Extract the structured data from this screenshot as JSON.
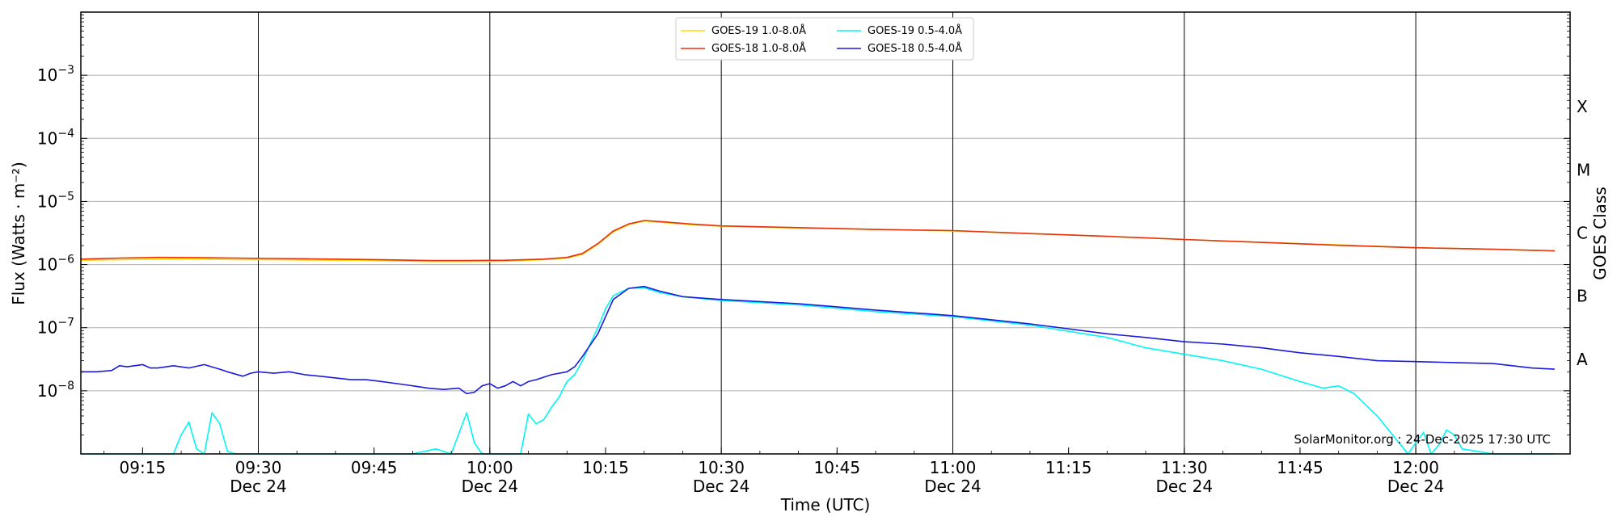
{
  "chart_data": {
    "type": "line",
    "xlabel": "Time (UTC)",
    "ylabel": "Flux (Watts · m⁻²)",
    "ylabel_right": "GOES Class",
    "yscale": "log",
    "xlim": [
      "09:07",
      "12:20"
    ],
    "ylim": [
      1e-09,
      0.01
    ],
    "grid": {
      "horizontal": true,
      "vertical_at_half_hours": true
    },
    "legend_position": "top-center",
    "watermark": "SolarMonitor.org : 24-Dec-2025 17:30 UTC",
    "x_ticks": [
      {
        "time": "09:15",
        "label": "09:15",
        "sub": ""
      },
      {
        "time": "09:30",
        "label": "09:30",
        "sub": "Dec 24"
      },
      {
        "time": "09:45",
        "label": "09:45",
        "sub": ""
      },
      {
        "time": "10:00",
        "label": "10:00",
        "sub": "Dec 24"
      },
      {
        "time": "10:15",
        "label": "10:15",
        "sub": ""
      },
      {
        "time": "10:30",
        "label": "10:30",
        "sub": "Dec 24"
      },
      {
        "time": "10:45",
        "label": "10:45",
        "sub": ""
      },
      {
        "time": "11:00",
        "label": "11:00",
        "sub": "Dec 24"
      },
      {
        "time": "11:15",
        "label": "11:15",
        "sub": ""
      },
      {
        "time": "11:30",
        "label": "11:30",
        "sub": "Dec 24"
      },
      {
        "time": "11:45",
        "label": "11:45",
        "sub": ""
      },
      {
        "time": "12:00",
        "label": "12:00",
        "sub": "Dec 24"
      }
    ],
    "y_ticks": [
      {
        "value": 1e-08,
        "base": "10",
        "exp": "−8"
      },
      {
        "value": 1e-07,
        "base": "10",
        "exp": "−7"
      },
      {
        "value": 1e-06,
        "base": "10",
        "exp": "−6"
      },
      {
        "value": 1e-05,
        "base": "10",
        "exp": "−5"
      },
      {
        "value": 0.0001,
        "base": "10",
        "exp": "−4"
      },
      {
        "value": 0.001,
        "base": "10",
        "exp": "−3"
      }
    ],
    "goes_classes": [
      {
        "label": "A",
        "value": 1e-08
      },
      {
        "label": "B",
        "value": 1e-07
      },
      {
        "label": "C",
        "value": 1e-06
      },
      {
        "label": "M",
        "value": 1e-05
      },
      {
        "label": "X",
        "value": 0.0001
      }
    ],
    "series": [
      {
        "name": "GOES-19 1.0-8.0Å",
        "color": "#ffd700",
        "x": [
          "09:07",
          "09:12",
          "09:17",
          "09:22",
          "09:27",
          "09:32",
          "09:37",
          "09:42",
          "09:47",
          "09:52",
          "09:57",
          "10:02",
          "10:07",
          "10:10",
          "10:12",
          "10:14",
          "10:16",
          "10:18",
          "10:20",
          "10:22",
          "10:26",
          "10:30",
          "10:40",
          "10:50",
          "11:00",
          "11:10",
          "11:20",
          "11:30",
          "11:40",
          "11:50",
          "12:00",
          "12:10",
          "12:18"
        ],
        "values": [
          1.17e-06,
          1.2e-06,
          1.22e-06,
          1.22e-06,
          1.2e-06,
          1.2e-06,
          1.18e-06,
          1.17e-06,
          1.15e-06,
          1.12e-06,
          1.12e-06,
          1.13e-06,
          1.2e-06,
          1.27e-06,
          1.45e-06,
          2.1e-06,
          3.3e-06,
          4.3e-06,
          4.9e-06,
          4.7e-06,
          4.3e-06,
          4.05e-06,
          3.8e-06,
          3.6e-06,
          3.4e-06,
          3.1e-06,
          2.8e-06,
          2.5e-06,
          2.25e-06,
          2.05e-06,
          1.85e-06,
          1.75e-06,
          1.65e-06
        ]
      },
      {
        "name": "GOES-18 1.0-8.0Å",
        "color": "#e8310f",
        "x": [
          "09:07",
          "09:12",
          "09:17",
          "09:22",
          "09:27",
          "09:32",
          "09:37",
          "09:42",
          "09:47",
          "09:52",
          "09:57",
          "10:02",
          "10:07",
          "10:10",
          "10:12",
          "10:14",
          "10:16",
          "10:18",
          "10:20",
          "10:22",
          "10:26",
          "10:30",
          "10:40",
          "10:50",
          "11:00",
          "11:10",
          "11:20",
          "11:30",
          "11:40",
          "11:50",
          "12:00",
          "12:10",
          "12:18"
        ],
        "values": [
          1.22e-06,
          1.27e-06,
          1.3e-06,
          1.29e-06,
          1.27e-06,
          1.25e-06,
          1.23e-06,
          1.21e-06,
          1.19e-06,
          1.16e-06,
          1.16e-06,
          1.17e-06,
          1.22e-06,
          1.3e-06,
          1.5e-06,
          2.15e-06,
          3.4e-06,
          4.4e-06,
          5e-06,
          4.8e-06,
          4.4e-06,
          4.1e-06,
          3.85e-06,
          3.6e-06,
          3.45e-06,
          3.1e-06,
          2.8e-06,
          2.5e-06,
          2.25e-06,
          2.02e-06,
          1.85e-06,
          1.75e-06,
          1.65e-06
        ]
      },
      {
        "name": "GOES-19 0.5-4.0Å",
        "color": "#00f5f5",
        "x": [
          "09:07",
          "09:13",
          "09:19",
          "09:20",
          "09:21",
          "09:22",
          "09:23",
          "09:24",
          "09:25",
          "09:26",
          "09:27",
          "09:28",
          "09:33",
          "09:40",
          "09:50",
          "09:53",
          "09:55",
          "09:57",
          "09:58",
          "09:59",
          "10:00",
          "10:04",
          "10:05",
          "10:06",
          "10:07",
          "10:08",
          "10:09",
          "10:10",
          "10:11",
          "10:12",
          "10:13",
          "10:14",
          "10:15",
          "10:16",
          "10:18",
          "10:20",
          "10:22",
          "10:25",
          "10:30",
          "10:40",
          "10:50",
          "11:00",
          "11:10",
          "11:20",
          "11:25",
          "11:30",
          "11:35",
          "11:40",
          "11:45",
          "11:48",
          "11:50",
          "11:52",
          "11:55",
          "11:57",
          "11:59",
          "12:00",
          "12:01",
          "12:02",
          "12:03",
          "12:04",
          "12:05",
          "12:06",
          "12:08",
          "12:10",
          "12:18"
        ],
        "values": [
          1e-09,
          1e-09,
          1e-09,
          2e-09,
          3.2e-09,
          1.2e-09,
          1e-09,
          4.5e-09,
          3e-09,
          1.1e-09,
          1e-09,
          1e-09,
          1e-09,
          1e-09,
          1e-09,
          1.2e-09,
          1e-09,
          4.5e-09,
          1.5e-09,
          1e-09,
          1e-09,
          1e-09,
          4.3e-09,
          3e-09,
          3.5e-09,
          5.5e-09,
          8e-09,
          1.4e-08,
          1.8e-08,
          3e-08,
          5.5e-08,
          1e-07,
          2e-07,
          3.2e-07,
          4.2e-07,
          4.3e-07,
          3.6e-07,
          3.1e-07,
          2.7e-07,
          2.3e-07,
          1.8e-07,
          1.5e-07,
          1.1e-07,
          7e-08,
          4.8e-08,
          3.8e-08,
          3e-08,
          2.2e-08,
          1.4e-08,
          1.1e-08,
          1.2e-08,
          9e-09,
          4e-09,
          2e-09,
          1e-09,
          1.5e-09,
          2.2e-09,
          1e-09,
          1.4e-09,
          2.4e-09,
          2e-09,
          1.2e-09,
          1.1e-09,
          1e-09,
          1e-09
        ]
      },
      {
        "name": "GOES-18 0.5-4.0Å",
        "color": "#1a1ae0",
        "x": [
          "09:07",
          "09:09",
          "09:11",
          "09:12",
          "09:13",
          "09:15",
          "09:16",
          "09:17",
          "09:19",
          "09:21",
          "09:23",
          "09:25",
          "09:26",
          "09:28",
          "09:29",
          "09:30",
          "09:32",
          "09:34",
          "09:36",
          "09:38",
          "09:40",
          "09:42",
          "09:44",
          "09:46",
          "09:48",
          "09:50",
          "09:52",
          "09:54",
          "09:56",
          "09:57",
          "09:58",
          "09:59",
          "10:00",
          "10:01",
          "10:02",
          "10:03",
          "10:04",
          "10:05",
          "10:06",
          "10:08",
          "10:10",
          "10:11",
          "10:12",
          "10:14",
          "10:16",
          "10:18",
          "10:20",
          "10:22",
          "10:25",
          "10:30",
          "10:40",
          "10:50",
          "11:00",
          "11:10",
          "11:20",
          "11:25",
          "11:30",
          "11:35",
          "11:40",
          "11:45",
          "11:50",
          "11:55",
          "12:00",
          "12:05",
          "12:10",
          "12:15",
          "12:18"
        ],
        "values": [
          2e-08,
          2e-08,
          2.1e-08,
          2.5e-08,
          2.4e-08,
          2.6e-08,
          2.3e-08,
          2.3e-08,
          2.5e-08,
          2.3e-08,
          2.6e-08,
          2.2e-08,
          2e-08,
          1.7e-08,
          1.9e-08,
          2e-08,
          1.9e-08,
          2e-08,
          1.8e-08,
          1.7e-08,
          1.6e-08,
          1.5e-08,
          1.5e-08,
          1.4e-08,
          1.3e-08,
          1.2e-08,
          1.1e-08,
          1.05e-08,
          1.1e-08,
          9e-09,
          9.5e-09,
          1.2e-08,
          1.3e-08,
          1.1e-08,
          1.2e-08,
          1.4e-08,
          1.2e-08,
          1.4e-08,
          1.5e-08,
          1.8e-08,
          2e-08,
          2.4e-08,
          3.5e-08,
          8e-08,
          2.8e-07,
          4.2e-07,
          4.5e-07,
          3.8e-07,
          3.1e-07,
          2.8e-07,
          2.4e-07,
          1.9e-07,
          1.55e-07,
          1.15e-07,
          8e-08,
          7e-08,
          6e-08,
          5.5e-08,
          4.8e-08,
          4e-08,
          3.5e-08,
          3e-08,
          2.9e-08,
          2.8e-08,
          2.7e-08,
          2.3e-08,
          2.2e-08
        ]
      }
    ]
  }
}
